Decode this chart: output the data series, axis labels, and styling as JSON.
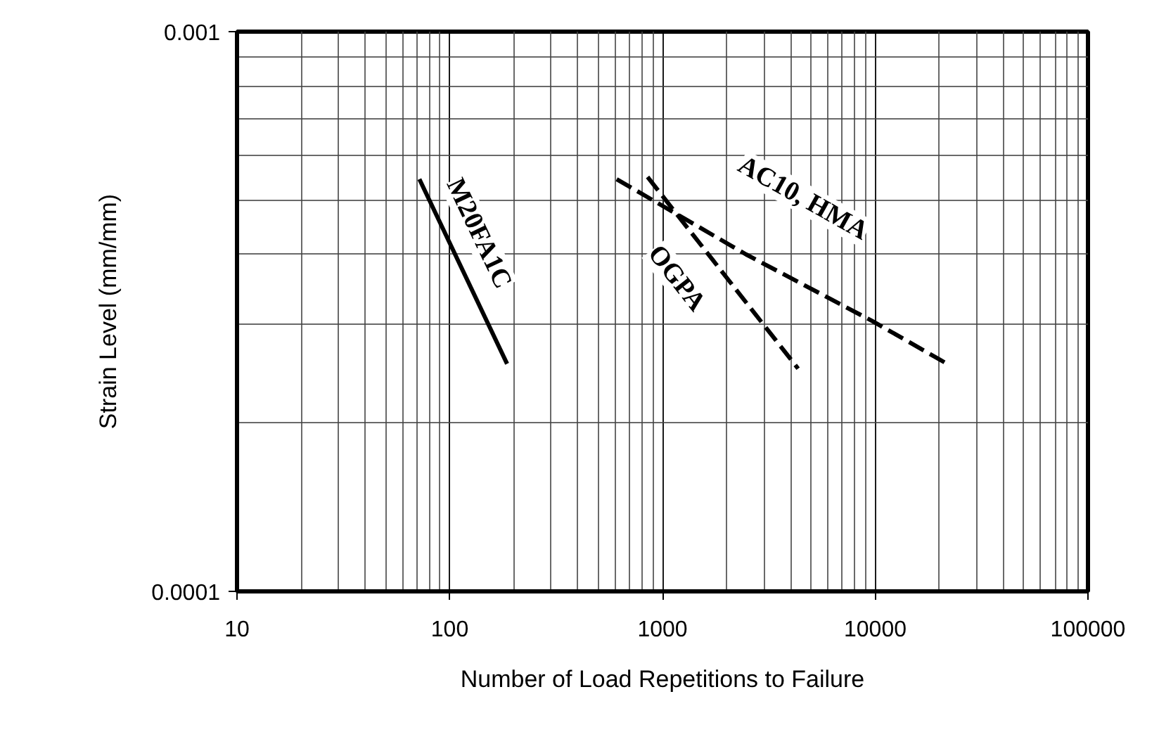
{
  "chart_data": {
    "type": "line",
    "xlabel": "Number of Load Repetitions to Failure",
    "ylabel": "Strain Level (mm/mm)",
    "log": "xy",
    "grid": true,
    "xlim": [
      10,
      100000
    ],
    "xticks": [
      10,
      100,
      1000,
      10000,
      100000
    ],
    "ylim": [
      0.0001,
      0.001
    ],
    "yticks": [
      0.0001,
      0.001
    ],
    "series": [
      {
        "name": "M20FA1C",
        "color": "#000000",
        "line_style": "solid",
        "x": [
          72,
          186
        ],
        "values": [
          0.000545,
          0.000255
        ]
      },
      {
        "name": "AC10, HMA",
        "color": "#000000",
        "line_style": "dashed",
        "x": [
          609,
          2470,
          9700,
          21770
        ],
        "values": [
          0.000545,
          0.0004,
          0.000304,
          0.000255
        ]
      },
      {
        "name": "OGPA",
        "color": "#000000",
        "line_style": "dashed",
        "x": [
          851,
          4340
        ],
        "values": [
          0.00055,
          0.00025
        ]
      }
    ]
  }
}
